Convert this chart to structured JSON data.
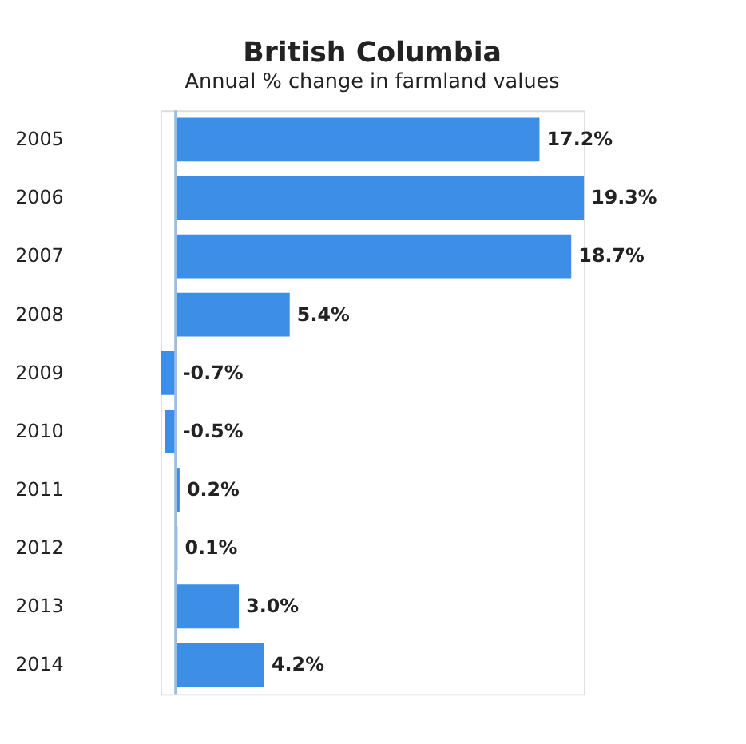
{
  "chart_data": {
    "type": "bar",
    "orientation": "horizontal",
    "title": "British Columbia",
    "subtitle": "Annual % change in farmland values",
    "categories": [
      "2005",
      "2006",
      "2007",
      "2008",
      "2009",
      "2010",
      "2011",
      "2012",
      "2013",
      "2014"
    ],
    "values": [
      17.2,
      19.3,
      18.7,
      5.4,
      -0.7,
      -0.5,
      0.2,
      0.1,
      3.0,
      4.2
    ],
    "value_labels": [
      "17.2%",
      "19.3%",
      "18.7%",
      "5.4%",
      "-0.7%",
      "-0.5%",
      "0.2%",
      "0.1%",
      "3.0%",
      "4.2%"
    ],
    "color": "#3d8ee6",
    "ref_lines": [
      {
        "axis": "x",
        "value": 0,
        "color": "#9bbde0"
      }
    ]
  }
}
